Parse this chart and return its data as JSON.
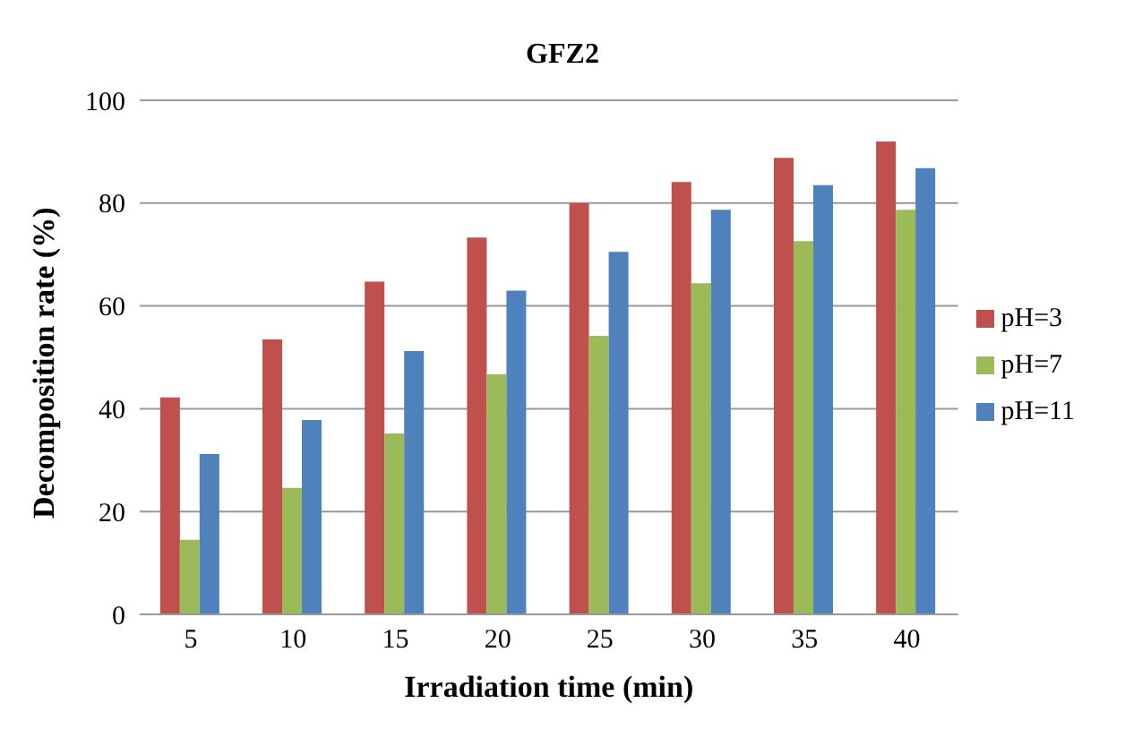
{
  "chart_data": {
    "type": "bar",
    "title": "GFZ2",
    "xlabel": "Irradiation time (min)",
    "ylabel": "Decomposition rate (%)",
    "categories": [
      "5",
      "10",
      "15",
      "20",
      "25",
      "30",
      "35",
      "40"
    ],
    "series": [
      {
        "name": "pH=3",
        "color": "#c0504d",
        "values": [
          42.2,
          53.5,
          64.7,
          73.3,
          80.0,
          84.1,
          88.8,
          92.0
        ]
      },
      {
        "name": "pH=7",
        "color": "#9bbb59",
        "values": [
          14.5,
          24.6,
          35.2,
          46.7,
          54.2,
          64.4,
          72.6,
          78.7
        ]
      },
      {
        "name": "pH=11",
        "color": "#4f81bd",
        "values": [
          31.2,
          37.8,
          51.2,
          63.0,
          70.5,
          78.7,
          83.5,
          86.8
        ]
      }
    ],
    "ylim": [
      0,
      100
    ],
    "yticks": [
      0,
      20,
      40,
      60,
      80,
      100
    ],
    "grid": "y",
    "legend": "right"
  }
}
